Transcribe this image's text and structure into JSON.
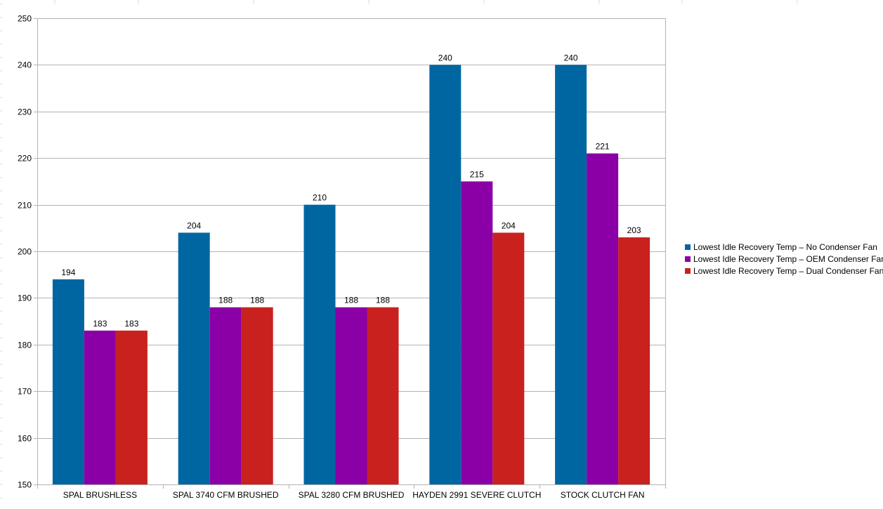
{
  "chart_data": {
    "type": "bar",
    "title": "",
    "xlabel": "",
    "ylabel": "",
    "categories": [
      "SPAL BRUSHLESS",
      "SPAL 3740 CFM BRUSHED",
      "SPAL 3280 CFM BRUSHED",
      "HAYDEN 2991 SEVERE CLUTCH",
      "STOCK CLUTCH FAN"
    ],
    "series": [
      {
        "name": "Lowest Idle Recovery Temp – No Condenser Fan",
        "color": "#0066a1",
        "values": [
          194,
          204,
          210,
          240,
          240
        ]
      },
      {
        "name": "Lowest Idle Recovery Temp – OEM Condenser Fan",
        "color": "#8b00a6",
        "values": [
          183,
          188,
          188,
          215,
          221
        ]
      },
      {
        "name": "Lowest Idle Recovery Temp – Dual Condenser Fans",
        "color": "#c9211e",
        "values": [
          183,
          188,
          188,
          204,
          203
        ]
      }
    ],
    "ylim": [
      150,
      250
    ],
    "yticks": [
      150,
      160,
      170,
      180,
      190,
      200,
      210,
      220,
      230,
      240,
      250
    ],
    "grid": true,
    "data_labels": true,
    "legend_position": "right"
  }
}
